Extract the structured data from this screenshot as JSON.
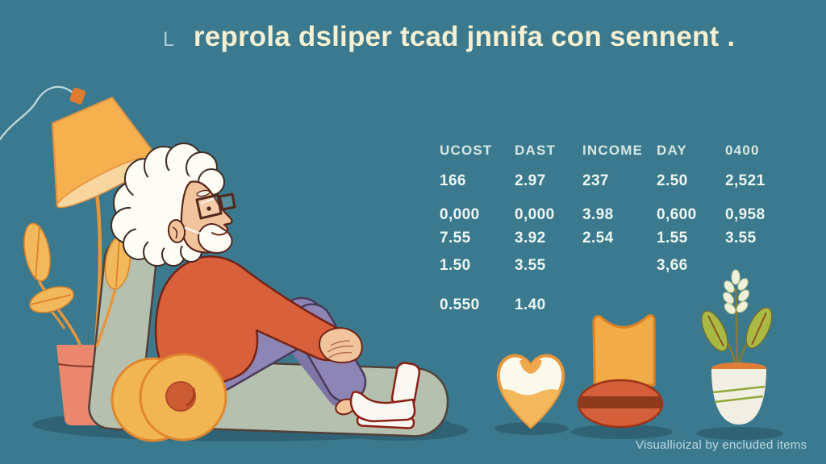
{
  "title": {
    "prefix_glyph": "L",
    "text": "reprola dsliper tcad jnnifa con sennent ."
  },
  "caption": "Visuallioizal by encluded items",
  "chart_data": {
    "type": "table",
    "columns": [
      "UCOST",
      "DAST",
      "INCOME",
      "DAY",
      "0400"
    ],
    "rows": [
      [
        "166",
        "2.97",
        "237",
        "2.50",
        "2,521"
      ],
      [
        "0,000",
        "0,000",
        "3.98",
        "0,600",
        "0,958"
      ],
      [
        "7.55",
        "3.92",
        "2.54",
        "1.55",
        "3.55"
      ],
      [
        "1.50",
        "3.55",
        "",
        "3,66",
        ""
      ],
      [
        "0.550",
        "1.40",
        "",
        "",
        ""
      ]
    ],
    "title": "reprola dsliper tcad jnnifa con sennent .",
    "legend": "none",
    "grid": "off"
  },
  "illustration": {
    "scene": "elderly man with white curly hair, glasses and beard reclining on a sage lounge chair",
    "elements": [
      "floor-lamp",
      "lamp-cord",
      "potted-plant-left",
      "lounge-chair",
      "elderly-man",
      "round-ottoman",
      "heart-ornament",
      "small-chair-ornament",
      "potted-plant-right",
      "ground-shadows"
    ]
  },
  "colors": {
    "background": "#3b7a8e",
    "title": "#f6f0d3",
    "table_header": "#d6e7e4",
    "table_value": "#eef6f1",
    "caption": "#bdd8de",
    "shadow": "#2e6274",
    "lamp_orange": "#f4b14e",
    "sweater_red_orange": "#d8603a",
    "chair_sage": "#b5c0ae",
    "pants_purple": "#8d85b5",
    "pot_terracotta": "#e9886c",
    "leaf_green": "#a9b944"
  }
}
